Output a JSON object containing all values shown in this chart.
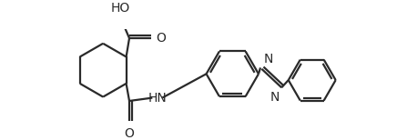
{
  "bg_color": "#ffffff",
  "line_color": "#2a2a2a",
  "line_width": 1.6,
  "figsize": [
    4.47,
    1.54
  ],
  "dpi": 100,
  "xlim": [
    0,
    447
  ],
  "ylim": [
    0,
    154
  ]
}
